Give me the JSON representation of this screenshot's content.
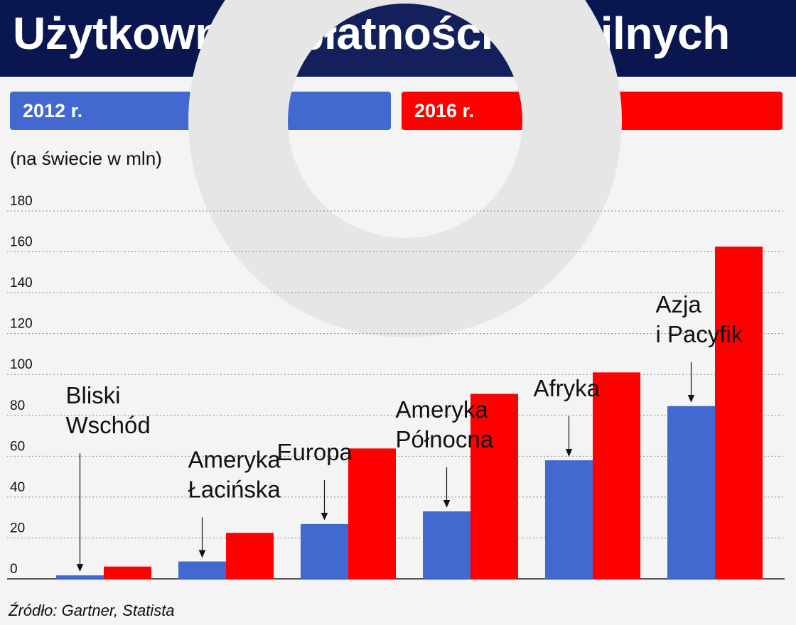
{
  "header": {
    "title": "Użytkownicy płatności mobilnych"
  },
  "legend": {
    "items": [
      {
        "label": "2012 r.",
        "color": "#4169d0"
      },
      {
        "label": "2016 r.",
        "color": "#ff0000"
      }
    ]
  },
  "unit_label": "(na świecie w mln)",
  "source": "Źródło: Gartner, Statista",
  "colors": {
    "header_bg": "#0a1650",
    "grid": "#888888",
    "axis": "#222222"
  },
  "chart_data": {
    "type": "bar",
    "categories": [
      "Bliski Wschód",
      "Ameryka Łacińska",
      "Europa",
      "Ameryka Północna",
      "Afryka",
      "Azja i Pacyfik"
    ],
    "category_label_lines": [
      [
        "Bliski",
        "Wschód"
      ],
      [
        "Ameryka",
        "Łacińska"
      ],
      [
        "Europa"
      ],
      [
        "Ameryka",
        "Północna"
      ],
      [
        "Afryka"
      ],
      [
        "Azja",
        "i Pacyfik"
      ]
    ],
    "series": [
      {
        "name": "2012 r.",
        "color": "#4169d0",
        "values": [
          1.7,
          8.5,
          26.8,
          33,
          58,
          84.5
        ]
      },
      {
        "name": "2016 r.",
        "color": "#ff0000",
        "values": [
          6,
          22.5,
          63.8,
          90.5,
          101,
          162.5
        ]
      }
    ],
    "yticks": [
      0,
      20,
      40,
      60,
      80,
      100,
      120,
      140,
      160,
      180
    ],
    "ylim": [
      0,
      185
    ],
    "grid": true,
    "legend_position": "top"
  }
}
